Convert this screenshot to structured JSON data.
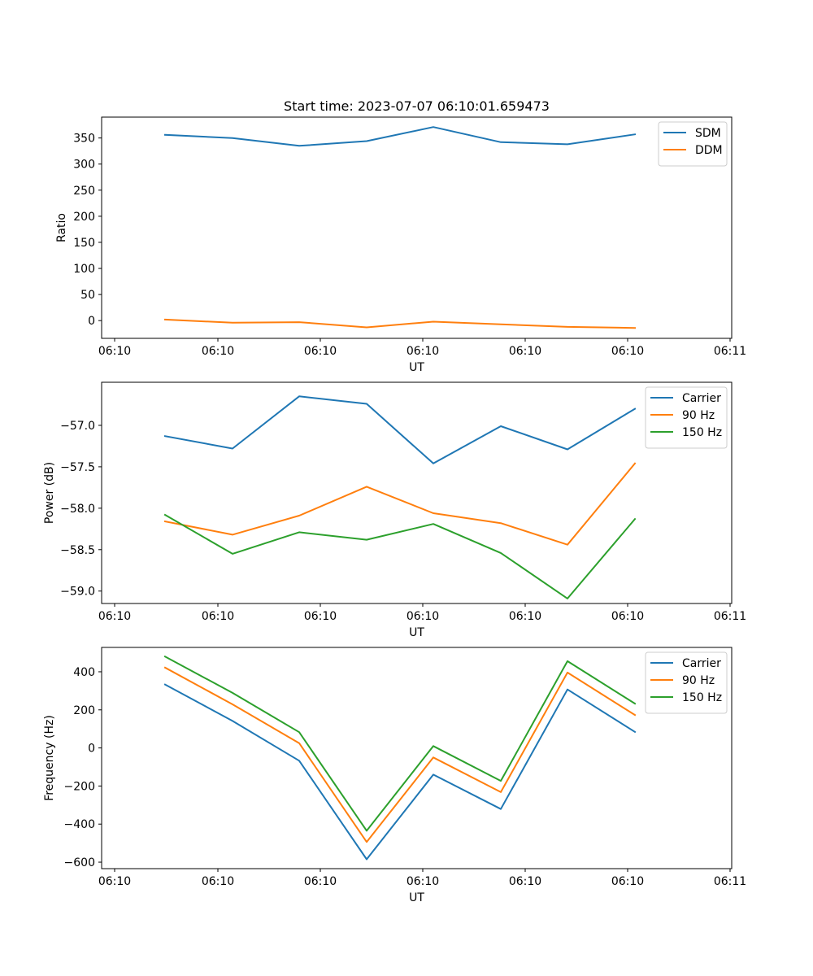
{
  "title": "Start time: 2023-07-07 06:10:01.659473",
  "chart_data": [
    {
      "type": "line",
      "xlabel": "UT",
      "ylabel": "Ratio",
      "x_tick_labels": [
        "06:10",
        "06:10",
        "06:10",
        "06:10",
        "06:10",
        "06:10",
        "06:11"
      ],
      "y_ticks": [
        0,
        50,
        100,
        150,
        200,
        250,
        300,
        350
      ],
      "ylim": [
        -34,
        390
      ],
      "legend_position": "top-right",
      "series": [
        {
          "name": "SDM",
          "color": "#1f77b4",
          "values": [
            356,
            350,
            335,
            344,
            371,
            342,
            338,
            357
          ]
        },
        {
          "name": "DDM",
          "color": "#ff7f0e",
          "values": [
            2,
            -4,
            -3,
            -13,
            -2,
            -7,
            -12,
            -14
          ]
        }
      ]
    },
    {
      "type": "line",
      "xlabel": "UT",
      "ylabel": "Power (dB)",
      "x_tick_labels": [
        "06:10",
        "06:10",
        "06:10",
        "06:10",
        "06:10",
        "06:10",
        "06:11"
      ],
      "y_ticks": [
        -57.0,
        -57.5,
        -58.0,
        -58.5,
        -59.0
      ],
      "y_tick_labels": [
        "−57.0",
        "−57.5",
        "−58.0",
        "−58.5",
        "−59.0"
      ],
      "ylim": [
        -59.15,
        -56.48
      ],
      "legend_position": "top-right",
      "series": [
        {
          "name": "Carrier",
          "color": "#1f77b4",
          "values": [
            -57.13,
            -57.28,
            -56.65,
            -56.74,
            -57.46,
            -57.01,
            -57.29,
            -56.8
          ]
        },
        {
          "name": "90 Hz",
          "color": "#ff7f0e",
          "values": [
            -58.16,
            -58.32,
            -58.09,
            -57.74,
            -58.06,
            -58.18,
            -58.44,
            -57.46
          ]
        },
        {
          "name": "150 Hz",
          "color": "#2ca02c",
          "values": [
            -58.08,
            -58.55,
            -58.29,
            -58.38,
            -58.19,
            -58.54,
            -59.09,
            -58.13
          ]
        }
      ]
    },
    {
      "type": "line",
      "xlabel": "UT",
      "ylabel": "Frequency (Hz)",
      "x_tick_labels": [
        "06:10",
        "06:10",
        "06:10",
        "06:10",
        "06:10",
        "06:10",
        "06:11"
      ],
      "y_ticks": [
        -600,
        -400,
        -200,
        0,
        200,
        400
      ],
      "y_tick_labels": [
        "−600",
        "−400",
        "−200",
        "0",
        "200",
        "400"
      ],
      "ylim": [
        -634,
        528
      ],
      "legend_position": "top-right",
      "series": [
        {
          "name": "Carrier",
          "color": "#1f77b4",
          "values": [
            333,
            142,
            -67,
            -585,
            -140,
            -321,
            307,
            84
          ]
        },
        {
          "name": "90 Hz",
          "color": "#ff7f0e",
          "values": [
            422,
            229,
            25,
            -494,
            -50,
            -232,
            396,
            173
          ]
        },
        {
          "name": "150 Hz",
          "color": "#2ca02c",
          "values": [
            480,
            289,
            83,
            -435,
            10,
            -173,
            456,
            233
          ]
        }
      ]
    }
  ]
}
